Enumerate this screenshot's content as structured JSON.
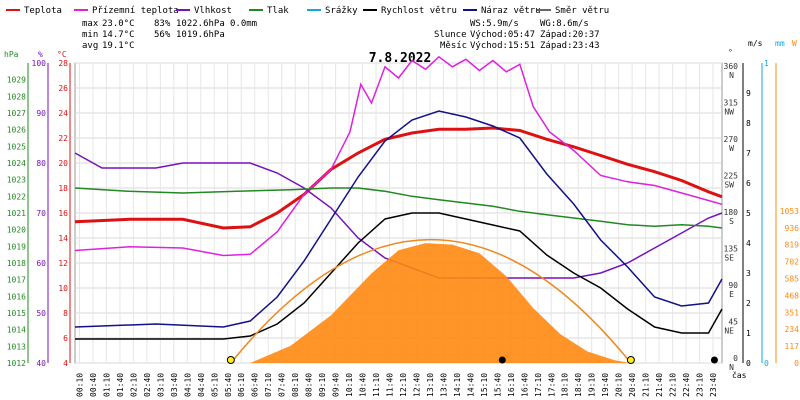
{
  "header": {
    "legend": [
      {
        "label": "Teplota",
        "color": "#dd1111"
      },
      {
        "label": "Přízemní teplota",
        "color": "#dd22dd"
      },
      {
        "label": "Vlhkost",
        "color": "#7711bb"
      },
      {
        "label": "Tlak",
        "color": "#228822"
      },
      {
        "label": "Srážky",
        "color": "#11aadd"
      },
      {
        "label": "Rychlost větru",
        "color": "#000000"
      },
      {
        "label": "Náraz větru",
        "color": "#111188"
      },
      {
        "label": "Směr větru",
        "color": "#666666"
      }
    ],
    "stats": {
      "max_label": "max",
      "max_temp": "23.0°C",
      "max_hum": "83%",
      "max_press": "1022.6hPa",
      "max_rain": "0.0mm",
      "min_label": "min",
      "min_temp": "14.7°C",
      "min_hum": "56%",
      "min_press": "1019.6hPa",
      "avg_label": "avg",
      "avg_temp": "19.1°C"
    },
    "wind": {
      "ws": "WS:5.9m/s",
      "wg": "WG:8.6m/s"
    },
    "sun": {
      "label": "Slunce",
      "rise": "Východ:05:47",
      "set": "Západ:20:37"
    },
    "moon": {
      "label": "Měsíc",
      "rise": "Východ:15:51",
      "set": "Západ:23:43"
    }
  },
  "chart_data": {
    "type": "line",
    "title": "7.8.2022",
    "xlabel": "čas",
    "x_ticks": [
      "00:10",
      "00:40",
      "01:10",
      "01:40",
      "02:10",
      "02:40",
      "03:10",
      "03:40",
      "04:10",
      "04:40",
      "05:10",
      "05:40",
      "06:10",
      "06:40",
      "07:10",
      "07:40",
      "08:10",
      "08:40",
      "09:10",
      "09:40",
      "10:10",
      "10:40",
      "11:10",
      "11:40",
      "12:10",
      "12:40",
      "13:10",
      "13:40",
      "14:10",
      "14:40",
      "15:10",
      "15:40",
      "16:10",
      "16:40",
      "17:10",
      "17:40",
      "18:10",
      "18:40",
      "19:10",
      "19:40",
      "20:10",
      "20:40",
      "21:10",
      "21:40",
      "22:10",
      "22:40",
      "23:10",
      "23:40"
    ],
    "axes": {
      "pressure": {
        "unit": "hPa",
        "range": [
          1012,
          1030
        ],
        "ticks": [
          "1012",
          "1013",
          "1014",
          "1015",
          "1016",
          "1017",
          "1018",
          "1019",
          "1020",
          "1021",
          "1022",
          "1023",
          "1024",
          "1025",
          "1026",
          "1027",
          "1028",
          "1029"
        ]
      },
      "humidity": {
        "unit": "%",
        "range": [
          40,
          100
        ],
        "ticks": [
          "40",
          "50",
          "60",
          "70",
          "80",
          "90",
          "100"
        ]
      },
      "temperature": {
        "unit": "°C",
        "range": [
          4,
          28
        ],
        "ticks": [
          "4",
          "6",
          "8",
          "10",
          "12",
          "14",
          "16",
          "18",
          "20",
          "22",
          "24",
          "26",
          "28"
        ]
      },
      "direction": {
        "unit": "°",
        "ticks": [
          "0 N",
          "45 NE",
          "90 E",
          "135 SE",
          "180 S",
          "225 SW",
          "270 W",
          "315 NW",
          "360 N"
        ]
      },
      "wind_speed": {
        "unit": "m/s",
        "range": [
          0,
          10
        ],
        "ticks": [
          "0",
          "1",
          "2",
          "3",
          "4",
          "5",
          "6",
          "7",
          "8",
          "9"
        ]
      },
      "rain": {
        "unit": "mm",
        "ticks": [
          "0",
          "1"
        ]
      },
      "solar": {
        "unit": "W",
        "ticks": [
          "0",
          "117",
          "234",
          "351",
          "468",
          "585",
          "702",
          "819",
          "936",
          "1053"
        ]
      }
    },
    "series": [
      {
        "name": "Teplota",
        "axis": "temperature",
        "color": "#dd1111",
        "x": [
          0,
          2,
          4,
          5.5,
          6.5,
          7.5,
          8.5,
          9.5,
          10.5,
          11.5,
          12.5,
          13.5,
          14.5,
          15.5,
          16.5,
          17.5,
          18.5,
          19.5,
          20.5,
          21.5,
          22.5,
          23.5,
          24
        ],
        "values": [
          15.3,
          15.5,
          15.5,
          14.8,
          14.9,
          16.0,
          17.5,
          19.5,
          20.8,
          21.9,
          22.4,
          22.7,
          22.7,
          22.8,
          22.6,
          21.9,
          21.3,
          20.6,
          19.9,
          19.3,
          18.6,
          17.7,
          17.3
        ]
      },
      {
        "name": "Přízemní teplota",
        "axis": "temperature",
        "color": "#dd22dd",
        "x": [
          0,
          2,
          4,
          5.5,
          6.5,
          7.5,
          8.5,
          9.5,
          10.2,
          10.6,
          11,
          11.5,
          12,
          12.5,
          13,
          13.5,
          14,
          14.5,
          15,
          15.5,
          16,
          16.5,
          17,
          17.6,
          18.5,
          19.5,
          20.5,
          21.5,
          22.5,
          23.5,
          24
        ],
        "values": [
          13.0,
          13.3,
          13.2,
          12.6,
          12.7,
          14.5,
          17.5,
          19.5,
          22.5,
          26.3,
          24.8,
          27.7,
          26.8,
          28.2,
          27.5,
          28.5,
          27.7,
          28.3,
          27.4,
          28.2,
          27.3,
          27.9,
          24.5,
          22.5,
          21.0,
          19.0,
          18.5,
          18.2,
          17.6,
          17.0,
          16.7
        ]
      },
      {
        "name": "Vlhkost",
        "axis": "humidity",
        "color": "#7711bb",
        "x": [
          0,
          1,
          2,
          3,
          4,
          5.5,
          6.5,
          7.5,
          8.5,
          9.5,
          10.5,
          11.5,
          12.5,
          13.5,
          14.5,
          15.5,
          16.5,
          17.5,
          18.5,
          19.5,
          20.5,
          21.5,
          22.5,
          23.5,
          24
        ],
        "values": [
          82,
          79,
          79,
          79,
          80,
          80,
          80,
          78,
          75,
          71,
          65,
          61,
          59,
          57,
          57,
          57,
          57,
          57,
          57,
          58,
          60,
          63,
          66,
          69,
          70
        ]
      },
      {
        "name": "Tlak",
        "axis": "pressure",
        "color": "#228822",
        "x": [
          0,
          2,
          4,
          6,
          8,
          9.5,
          10.5,
          11.5,
          12.5,
          13.5,
          14.5,
          15.5,
          16.5,
          17.5,
          18.5,
          19.5,
          20.5,
          21.5,
          22.5,
          23.5,
          24
        ],
        "values": [
          1022.5,
          1022.3,
          1022.2,
          1022.3,
          1022.4,
          1022.5,
          1022.5,
          1022.3,
          1022.0,
          1021.8,
          1021.6,
          1021.4,
          1021.1,
          1020.9,
          1020.7,
          1020.5,
          1020.3,
          1020.2,
          1020.3,
          1020.2,
          1020.1
        ]
      },
      {
        "name": "Rychlost větru",
        "axis": "wind_speed",
        "color": "#000000",
        "x": [
          0,
          3,
          5.5,
          6.5,
          7.5,
          8.5,
          9.5,
          10.5,
          11.5,
          12.5,
          13.5,
          14.5,
          15.5,
          16.5,
          17.5,
          18.5,
          19.5,
          20.5,
          21.5,
          22.5,
          23.5,
          24
        ],
        "values": [
          0.8,
          0.8,
          0.8,
          0.9,
          1.3,
          2.0,
          3.0,
          4.0,
          4.8,
          5.0,
          5.0,
          4.8,
          4.6,
          4.4,
          3.6,
          3.0,
          2.5,
          1.8,
          1.2,
          1.0,
          1.0,
          1.8
        ]
      },
      {
        "name": "Náraz větru",
        "axis": "wind_speed",
        "color": "#111188",
        "x": [
          0,
          3,
          5.5,
          6.5,
          7.5,
          8.5,
          9.5,
          10.5,
          11.5,
          12.5,
          13.5,
          14.5,
          15.5,
          16.5,
          17.5,
          18.5,
          19.5,
          20.5,
          21.5,
          22.5,
          23.5,
          24
        ],
        "values": [
          1.2,
          1.3,
          1.2,
          1.4,
          2.2,
          3.4,
          4.8,
          6.2,
          7.4,
          8.1,
          8.4,
          8.2,
          7.9,
          7.5,
          6.3,
          5.3,
          4.1,
          3.2,
          2.2,
          1.9,
          2.0,
          2.8
        ]
      },
      {
        "name": "Solar",
        "axis": "solar",
        "color": "#ff8811",
        "x": [
          6.5,
          8,
          9.5,
          11,
          12,
          13,
          14,
          15,
          16,
          17,
          18,
          19,
          20,
          20.6
        ],
        "values": [
          0,
          120,
          330,
          620,
          780,
          830,
          820,
          760,
          600,
          380,
          200,
          80,
          20,
          0
        ]
      }
    ],
    "sun_rise_time": "05:47",
    "sun_set_time": "20:37",
    "grid": true
  }
}
